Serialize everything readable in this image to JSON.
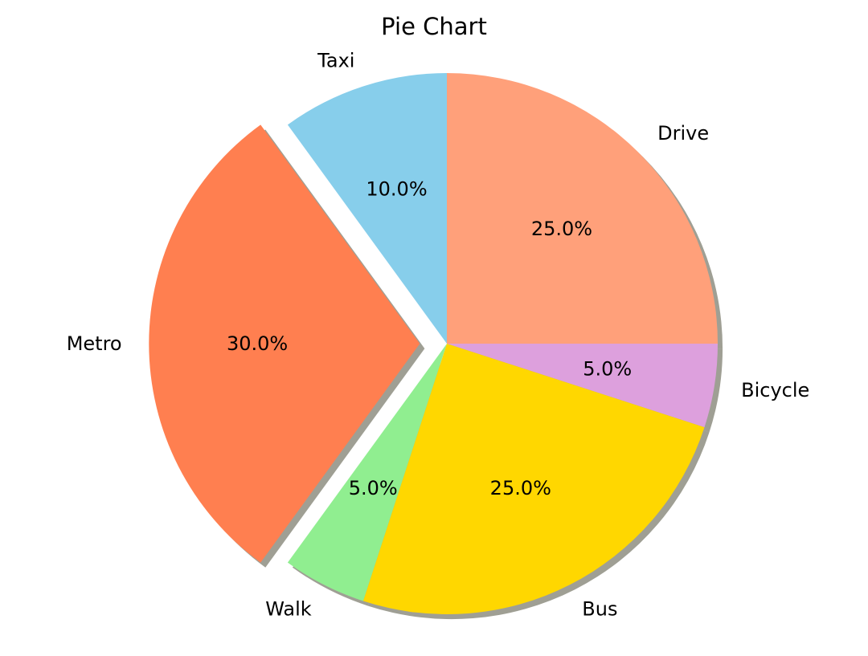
{
  "chart_data": {
    "type": "pie",
    "title": "Pie Chart",
    "start_angle_deg": 90,
    "direction": "clockwise",
    "shadow": true,
    "slices": [
      {
        "label": "Drive",
        "value": 25.0,
        "pct_label": "25.0%",
        "color": "#FFA07A",
        "exploded": false
      },
      {
        "label": "Bicycle",
        "value": 5.0,
        "pct_label": "5.0%",
        "color": "#DDA0DD",
        "exploded": false
      },
      {
        "label": "Bus",
        "value": 25.0,
        "pct_label": "25.0%",
        "color": "#FFD700",
        "exploded": false
      },
      {
        "label": "Walk",
        "value": 5.0,
        "pct_label": "5.0%",
        "color": "#90EE90",
        "exploded": false
      },
      {
        "label": "Metro",
        "value": 30.0,
        "pct_label": "30.0%",
        "color": "#FF7F50",
        "exploded": true
      },
      {
        "label": "Taxi",
        "value": 10.0,
        "pct_label": "10.0%",
        "color": "#87CEEB",
        "exploded": false
      }
    ]
  }
}
